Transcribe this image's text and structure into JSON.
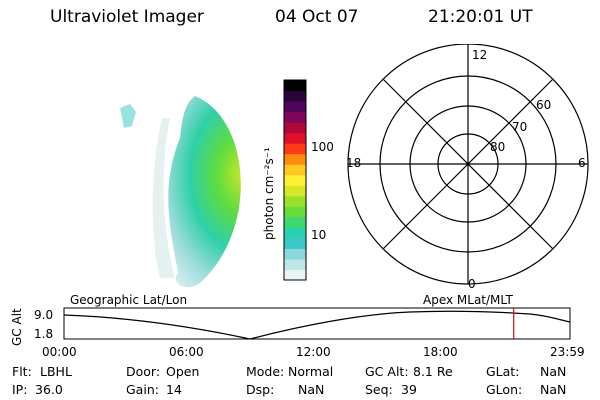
{
  "header": {
    "instrument": "Ultraviolet Imager",
    "date": "04 Oct 07",
    "time": "21:20:01 UT"
  },
  "colorbar": {
    "label": "photon cm⁻²s⁻¹",
    "ticks": [
      {
        "label": "100",
        "value": 100
      },
      {
        "label": "10",
        "value": 10
      }
    ],
    "colors": [
      "#e8f4f4",
      "#bfe6e6",
      "#8ad8dc",
      "#3cc8c8",
      "#28d2b0",
      "#3ed770",
      "#68dc3a",
      "#9be02a",
      "#d8e62a",
      "#fff030",
      "#ffc820",
      "#ff8a10",
      "#ff3a18",
      "#e0102a",
      "#b0083a",
      "#80065a",
      "#50045a",
      "#28043a",
      "#000000"
    ]
  },
  "polar": {
    "mlt_labels": {
      "top": "12",
      "left": "18",
      "right": "6",
      "bottom": "0"
    },
    "lat_labels": [
      "60",
      "70",
      "80"
    ]
  },
  "timeline": {
    "alt_axis_label": "GC Alt",
    "alt_max": "9.0",
    "alt_min": "1.8",
    "left_caption": "Geographic Lat/Lon",
    "right_caption": "Apex  MLat/MLT",
    "x_ticks": [
      "00:00",
      "06:00",
      "12:00",
      "18:00",
      "23:59"
    ],
    "current_time_hours": 21.33
  },
  "info": {
    "flt": {
      "label": "Flt:",
      "value": "LBHL"
    },
    "ip": {
      "label": "IP:",
      "value": "36.0"
    },
    "door": {
      "label": "Door:",
      "value": "Open"
    },
    "gain": {
      "label": "Gain:",
      "value": "14"
    },
    "mode": {
      "label": "Mode:",
      "value": "Normal"
    },
    "dsp": {
      "label": "Dsp:",
      "value": "NaN"
    },
    "gcalt": {
      "label": "GC Alt:",
      "value": "8.1 Re"
    },
    "seq": {
      "label": "Seq:",
      "value": "39"
    },
    "glat": {
      "label": "GLat:",
      "value": "NaN"
    },
    "glon": {
      "label": "GLon:",
      "value": "NaN"
    }
  }
}
